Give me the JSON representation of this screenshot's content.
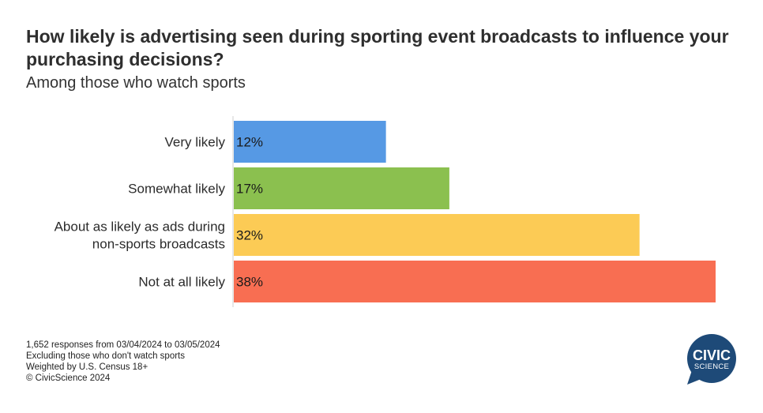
{
  "header": {
    "title": "How likely is advertising seen during sporting event broadcasts to influence your purchasing decisions?",
    "subtitle": "Among those who watch sports"
  },
  "chart_data": {
    "type": "bar",
    "orientation": "horizontal",
    "categories": [
      [
        "Very likely"
      ],
      [
        "Somewhat likely"
      ],
      [
        "About as likely as ads during",
        "non-sports broadcasts"
      ],
      [
        "Not at all likely"
      ]
    ],
    "values": [
      12,
      17,
      32,
      38
    ],
    "value_labels": [
      "12%",
      "17%",
      "32%",
      "38%"
    ],
    "colors": [
      "#5699e4",
      "#8bc04f",
      "#fccb55",
      "#f86e52"
    ],
    "xlim": [
      0,
      38
    ],
    "grid": false,
    "legend": "none"
  },
  "footnotes": {
    "responses": "1,652 responses from 03/04/2024 to 03/05/2024",
    "exclusion": "Excluding those who don't watch sports",
    "weighting": "Weighted by U.S. Census 18+",
    "copyright": "© CivicScience 2024"
  },
  "logo": {
    "line1": "CIVIC",
    "line2": "SCIENCE",
    "color": "#1e4a78"
  }
}
